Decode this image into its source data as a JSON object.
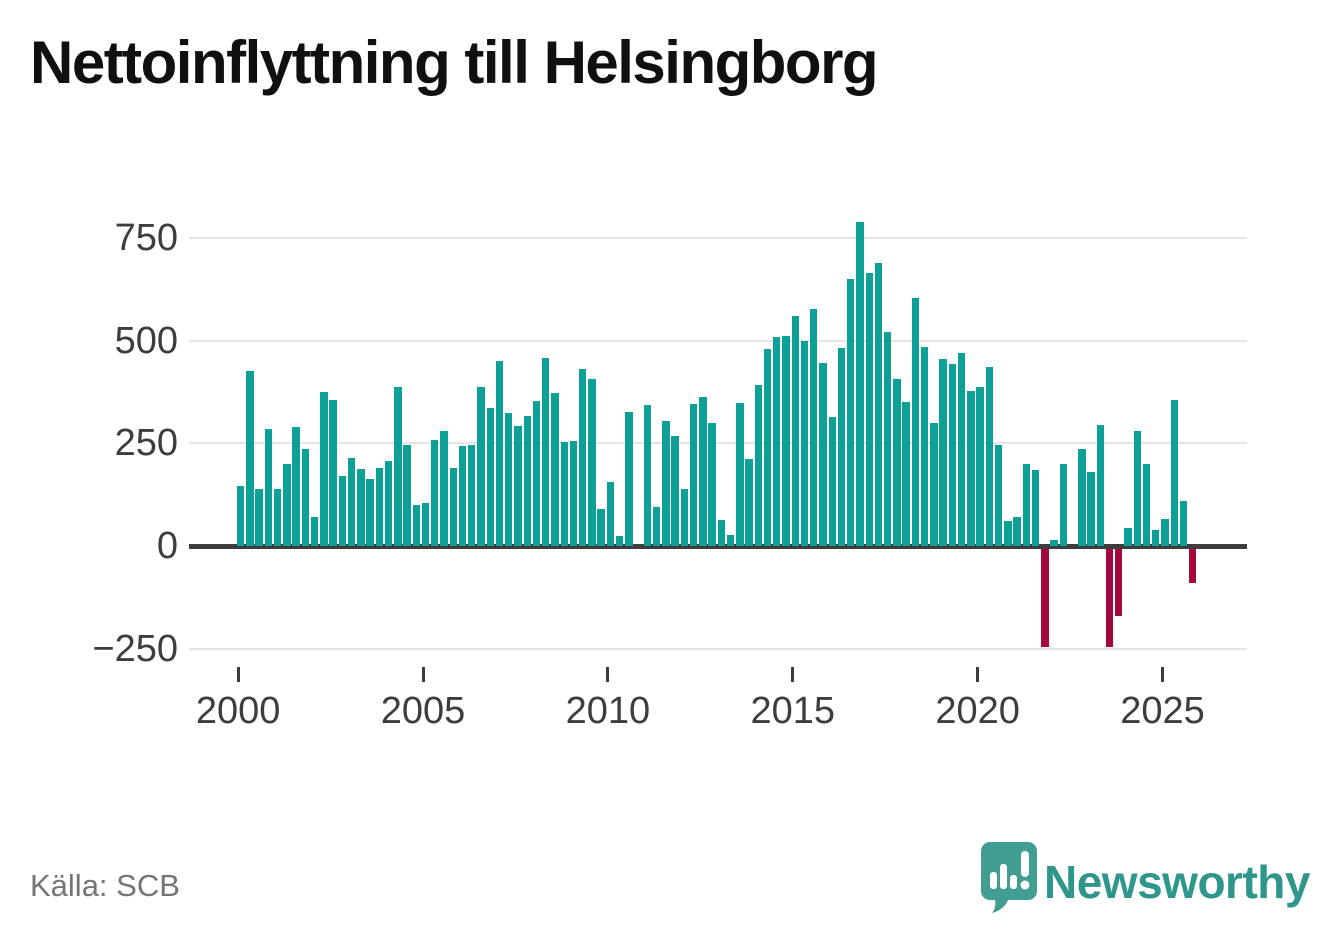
{
  "title": "Nettoinflyttning till Helsingborg",
  "source": "Källa: SCB",
  "logo_text": "Newsworthy",
  "colors": {
    "bar_positive": "#0da096",
    "bar_negative": "#a4073d",
    "axis_line": "#3d3d3d",
    "gridline": "#e4e4e4",
    "tick_label": "#3d3d3d",
    "title_text": "#101010",
    "source_text": "#757575",
    "logo_teal": "#429d93",
    "wordmark_teal": "#2f968c"
  },
  "y_axis": {
    "tick_values": [
      750,
      500,
      250,
      0,
      -250
    ],
    "tick_labels": [
      "750",
      "500",
      "250",
      "0",
      "−250"
    ]
  },
  "x_axis": {
    "tick_years": [
      2000,
      2005,
      2010,
      2015,
      2020,
      2025
    ],
    "tick_labels": [
      "2000",
      "2005",
      "2010",
      "2015",
      "2020",
      "2025"
    ]
  },
  "chart_data": {
    "type": "bar",
    "title": "Nettoinflyttning till Helsingborg",
    "xlabel": "",
    "ylabel": "",
    "x_start": "2000 Q1",
    "x_end": "2025 Q4",
    "frequency": "quarterly",
    "ylim": [
      -290,
      840
    ],
    "y_ticks": [
      750,
      500,
      250,
      0,
      -250
    ],
    "x_tick_years": [
      2000,
      2005,
      2010,
      2015,
      2020,
      2025
    ],
    "grid": "horizontal",
    "legend": "none",
    "positive_color": "#0da096",
    "negative_color": "#a4073d",
    "values": [
      145,
      425,
      140,
      285,
      140,
      200,
      290,
      235,
      70,
      375,
      355,
      170,
      215,
      187,
      163,
      191,
      208,
      388,
      247,
      100,
      105,
      257,
      281,
      191,
      243,
      247,
      388,
      335,
      450,
      323,
      291,
      317,
      352,
      457,
      373,
      254,
      256,
      431,
      406,
      90,
      157,
      25,
      327,
      0,
      343,
      95,
      305,
      268,
      140,
      345,
      364,
      299,
      64,
      28,
      347,
      211,
      391,
      479,
      508,
      511,
      559,
      499,
      576,
      446,
      314,
      483,
      650,
      790,
      665,
      690,
      520,
      406,
      351,
      605,
      485,
      300,
      455,
      443,
      469,
      378,
      387,
      436,
      246,
      62,
      70,
      200,
      185,
      -240,
      15,
      200,
      0,
      235,
      180,
      295,
      -240,
      -165,
      45,
      280,
      200,
      40,
      65,
      355,
      110,
      -85
    ]
  }
}
